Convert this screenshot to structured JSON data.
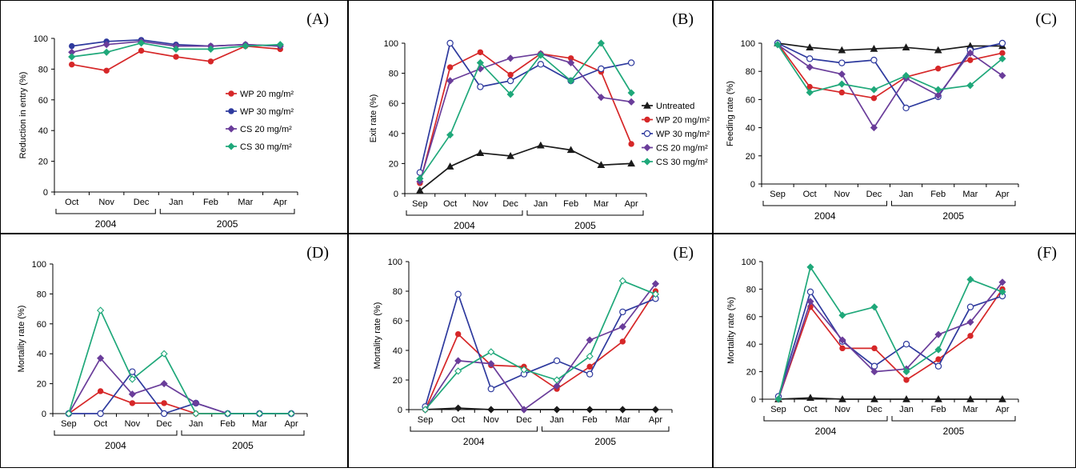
{
  "colors": {
    "black": "#1a1a1a",
    "red": "#d62728",
    "blue": "#2e3a9e",
    "purple": "#6a3d9a",
    "green": "#1fa87a"
  },
  "chart_data": [
    {
      "panel_label": "(A)",
      "type": "line",
      "categories": [
        "Oct",
        "Nov",
        "Dec",
        "Jan",
        "Feb",
        "Mar",
        "Apr"
      ],
      "ylabel": "Reduction in entry (%)",
      "xlabel": "",
      "ylim": [
        0,
        100
      ],
      "yticks": [
        "0",
        "20",
        "40",
        "60",
        "80",
        "100"
      ],
      "year_groups": [
        {
          "label": "2004",
          "from": 0,
          "to": 2
        },
        {
          "label": "2005",
          "from": 3,
          "to": 6
        }
      ],
      "legend": "right-middle",
      "series": [
        {
          "name": "WP 20 mg/m²",
          "color_key": "red",
          "marker": "circle-filled",
          "values": [
            83,
            79,
            92,
            88,
            85,
            95,
            93
          ]
        },
        {
          "name": "WP 30 mg/m²",
          "color_key": "blue",
          "marker": "circle-filled",
          "values": [
            95,
            98,
            99,
            96,
            95,
            96,
            95
          ]
        },
        {
          "name": "CS 20 mg/m²",
          "color_key": "purple",
          "marker": "diamond",
          "values": [
            91,
            96,
            98,
            95,
            95,
            96,
            95
          ]
        },
        {
          "name": "CS 30 mg/m²",
          "color_key": "green",
          "marker": "diamond",
          "values": [
            88,
            91,
            97,
            93,
            93,
            95,
            96
          ]
        }
      ]
    },
    {
      "panel_label": "(B)",
      "type": "line",
      "categories": [
        "Sep",
        "Oct",
        "Nov",
        "Dec",
        "Jan",
        "Feb",
        "Mar",
        "Apr"
      ],
      "ylabel": "Exit rate (%)",
      "xlabel": "",
      "ylim": [
        0,
        100
      ],
      "yticks": [
        "0",
        "20",
        "40",
        "60",
        "80",
        "100"
      ],
      "year_groups": [
        {
          "label": "2004",
          "from": 0,
          "to": 3
        },
        {
          "label": "2005",
          "from": 4,
          "to": 7
        }
      ],
      "legend": "right-middle",
      "series": [
        {
          "name": "Untreated",
          "color_key": "black",
          "marker": "triangle",
          "values": [
            2,
            18,
            27,
            25,
            32,
            29,
            19,
            20
          ]
        },
        {
          "name": "WP 20 mg/m²",
          "color_key": "red",
          "marker": "circle-filled",
          "values": [
            7,
            84,
            94,
            79,
            93,
            90,
            81,
            33
          ]
        },
        {
          "name": "WP 30 mg/m²",
          "color_key": "blue",
          "marker": "circle-open",
          "values": [
            14,
            100,
            71,
            75,
            86,
            75,
            83,
            87
          ]
        },
        {
          "name": "CS 20 mg/m²",
          "color_key": "purple",
          "marker": "diamond",
          "values": [
            8,
            75,
            83,
            90,
            93,
            87,
            64,
            61
          ]
        },
        {
          "name": "CS 30 mg/m²",
          "color_key": "green",
          "marker": "diamond",
          "values": [
            10,
            39,
            87,
            66,
            92,
            75,
            100,
            67
          ]
        }
      ]
    },
    {
      "panel_label": "(C)",
      "type": "line",
      "categories": [
        "Sep",
        "Oct",
        "Nov",
        "Dec",
        "Jan",
        "Feb",
        "Mar",
        "Apr"
      ],
      "ylabel": "Feeding rate (%)",
      "xlabel": "",
      "ylim": [
        0,
        100
      ],
      "yticks": [
        "0",
        "20",
        "40",
        "60",
        "80",
        "100"
      ],
      "year_groups": [
        {
          "label": "2004",
          "from": 0,
          "to": 3
        },
        {
          "label": "2005",
          "from": 4,
          "to": 7
        }
      ],
      "legend": "none",
      "series": [
        {
          "name": "Untreated",
          "color_key": "black",
          "marker": "triangle",
          "values": [
            100,
            97,
            95,
            96,
            97,
            95,
            98,
            98
          ]
        },
        {
          "name": "WP 20 mg/m²",
          "color_key": "red",
          "marker": "circle-filled",
          "values": [
            100,
            69,
            65,
            61,
            76,
            82,
            88,
            93
          ]
        },
        {
          "name": "WP 30 mg/m²",
          "color_key": "blue",
          "marker": "circle-open",
          "values": [
            100,
            89,
            86,
            88,
            54,
            62,
            95,
            100
          ]
        },
        {
          "name": "CS 20 mg/m²",
          "color_key": "purple",
          "marker": "diamond",
          "values": [
            99,
            83,
            78,
            40,
            75,
            63,
            93,
            77
          ]
        },
        {
          "name": "CS 30 mg/m²",
          "color_key": "green",
          "marker": "diamond",
          "values": [
            99,
            65,
            71,
            67,
            77,
            67,
            70,
            89
          ]
        }
      ]
    },
    {
      "panel_label": "(D)",
      "type": "line",
      "categories": [
        "Sep",
        "Oct",
        "Nov",
        "Dec",
        "Jan",
        "Feb",
        "Mar",
        "Apr"
      ],
      "ylabel": "Mortality rate (%)",
      "xlabel": "",
      "ylim": [
        0,
        100
      ],
      "yticks": [
        "0",
        "20",
        "40",
        "60",
        "80",
        "100"
      ],
      "year_groups": [
        {
          "label": "2004",
          "from": 0,
          "to": 3
        },
        {
          "label": "2005",
          "from": 4,
          "to": 7
        }
      ],
      "legend": "none",
      "series": [
        {
          "name": "WP 20 mg/m²",
          "color_key": "red",
          "marker": "circle-filled",
          "values": [
            0,
            15,
            7,
            7,
            0,
            0,
            0,
            0
          ]
        },
        {
          "name": "WP 30 mg/m²",
          "color_key": "blue",
          "marker": "circle-open",
          "values": [
            0,
            0,
            28,
            0,
            7,
            0,
            0,
            0
          ]
        },
        {
          "name": "CS 20 mg/m²",
          "color_key": "purple",
          "marker": "diamond",
          "values": [
            0,
            37,
            13,
            20,
            7,
            0,
            0,
            0
          ]
        },
        {
          "name": "CS 30 mg/m²",
          "color_key": "green",
          "marker": "diamond-open",
          "values": [
            0,
            69,
            23,
            40,
            0,
            0,
            0,
            0
          ]
        }
      ]
    },
    {
      "panel_label": "(E)",
      "type": "line",
      "categories": [
        "Sep",
        "Oct",
        "Nov",
        "Dec",
        "Jan",
        "Feb",
        "Mar",
        "Apr"
      ],
      "ylabel": "Mortality rate (%)",
      "xlabel": "",
      "ylim": [
        0,
        100
      ],
      "yticks": [
        "0",
        "20",
        "40",
        "60",
        "80",
        "100"
      ],
      "year_groups": [
        {
          "label": "2004",
          "from": 0,
          "to": 3
        },
        {
          "label": "2005",
          "from": 4,
          "to": 7
        }
      ],
      "legend": "none",
      "series": [
        {
          "name": "Untreated",
          "color_key": "black",
          "marker": "diamond",
          "values": [
            0,
            1,
            0,
            0,
            0,
            0,
            0,
            0
          ]
        },
        {
          "name": "WP 20 mg/m²",
          "color_key": "red",
          "marker": "circle-filled",
          "values": [
            0,
            51,
            30,
            29,
            14,
            29,
            46,
            80
          ]
        },
        {
          "name": "WP 30 mg/m²",
          "color_key": "blue",
          "marker": "circle-open",
          "values": [
            2,
            78,
            14,
            24,
            33,
            24,
            66,
            75
          ]
        },
        {
          "name": "CS 20 mg/m²",
          "color_key": "purple",
          "marker": "diamond",
          "values": [
            0,
            33,
            31,
            0,
            16,
            47,
            56,
            85
          ]
        },
        {
          "name": "CS 30 mg/m²",
          "color_key": "green",
          "marker": "diamond-open",
          "values": [
            0,
            26,
            39,
            27,
            20,
            36,
            87,
            78
          ]
        }
      ]
    },
    {
      "panel_label": "(F)",
      "type": "line",
      "categories": [
        "Sep",
        "Oct",
        "Nov",
        "Dec",
        "Jan",
        "Feb",
        "Mar",
        "Apr"
      ],
      "ylabel": "Mortality rate (%)",
      "xlabel": "",
      "ylim": [
        0,
        100
      ],
      "yticks": [
        "0",
        "20",
        "40",
        "60",
        "80",
        "100"
      ],
      "year_groups": [
        {
          "label": "2004",
          "from": 0,
          "to": 3
        },
        {
          "label": "2005",
          "from": 4,
          "to": 7
        }
      ],
      "legend": "none",
      "series": [
        {
          "name": "Untreated",
          "color_key": "black",
          "marker": "triangle",
          "values": [
            0,
            1,
            0,
            0,
            0,
            0,
            0,
            0
          ]
        },
        {
          "name": "WP 20 mg/m²",
          "color_key": "red",
          "marker": "circle-filled",
          "values": [
            0,
            67,
            37,
            37,
            14,
            29,
            46,
            80
          ]
        },
        {
          "name": "WP 30 mg/m²",
          "color_key": "blue",
          "marker": "circle-open",
          "values": [
            2,
            78,
            42,
            24,
            40,
            24,
            67,
            75
          ]
        },
        {
          "name": "CS 20 mg/m²",
          "color_key": "purple",
          "marker": "diamond",
          "values": [
            0,
            71,
            43,
            20,
            22,
            47,
            56,
            85
          ]
        },
        {
          "name": "CS 30 mg/m²",
          "color_key": "green",
          "marker": "diamond",
          "values": [
            0,
            96,
            61,
            67,
            20,
            36,
            87,
            78
          ]
        }
      ]
    }
  ]
}
